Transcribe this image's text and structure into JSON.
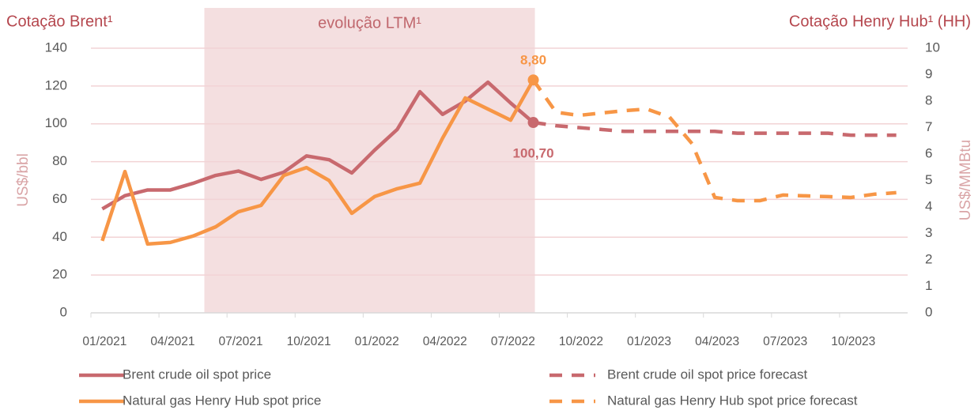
{
  "chart_data": {
    "type": "line",
    "title_left": "Cotação Brent¹",
    "title_right": "Cotação Henry Hub¹ (HH)",
    "ylabel": "US$/bbl",
    "y2label": "US$/MMBtu",
    "shade_label": "evolução LTM¹",
    "categories": [
      "01/2021",
      null,
      null,
      "04/2021",
      null,
      null,
      "07/2021",
      null,
      null,
      "10/2021",
      null,
      null,
      "01/2022",
      null,
      null,
      "04/2022",
      null,
      null,
      "07/2022",
      null,
      null,
      "10/2022",
      null,
      null,
      "01/2023",
      null,
      null,
      "04/2023",
      null,
      null,
      "07/2023",
      null,
      null,
      "10/2023",
      null,
      null
    ],
    "ylim": [
      0,
      140
    ],
    "yticks": [
      0,
      20,
      40,
      60,
      80,
      100,
      120,
      140
    ],
    "y2lim": [
      0,
      10
    ],
    "y2ticks": [
      0,
      1,
      2,
      3,
      4,
      5,
      6,
      7,
      8,
      9,
      10
    ],
    "grid": true,
    "series": [
      {
        "name": "Brent crude oil spot price",
        "color": "#c8696e",
        "dash": false,
        "values": [
          55,
          62,
          65,
          65,
          68.5,
          72.7,
          75,
          70.6,
          74.4,
          83,
          81,
          74,
          86,
          97,
          117,
          105,
          112,
          122,
          111,
          100.7,
          null,
          null,
          null,
          null,
          null,
          null,
          null,
          null,
          null,
          null,
          null,
          null,
          null,
          null,
          null,
          null
        ],
        "value_labels": [
          null,
          null,
          null,
          null,
          null,
          null,
          null,
          null,
          null,
          null,
          null,
          null,
          null,
          null,
          null,
          null,
          null,
          null,
          null,
          "100,70",
          null,
          null,
          null,
          null,
          null,
          null,
          null,
          null,
          null,
          null,
          null,
          null,
          null,
          null,
          null,
          null
        ]
      },
      {
        "name": "Natural gas Henry Hub spot price",
        "color": "#f79646",
        "dash": false,
        "axis": "y2",
        "values": [
          2.72,
          5.34,
          2.6,
          2.66,
          2.9,
          3.25,
          3.82,
          4.06,
          5.19,
          5.49,
          5.0,
          3.76,
          4.39,
          4.69,
          4.9,
          6.6,
          8.12,
          7.7,
          7.28,
          8.8,
          null,
          null,
          null,
          null,
          null,
          null,
          null,
          null,
          null,
          null,
          null,
          null,
          null,
          null,
          null,
          null
        ],
        "value_labels": [
          null,
          null,
          null,
          null,
          null,
          null,
          null,
          null,
          null,
          null,
          null,
          null,
          null,
          null,
          null,
          null,
          null,
          null,
          null,
          "8,80",
          null,
          null,
          null,
          null,
          null,
          null,
          null,
          null,
          null,
          null,
          null,
          null,
          null,
          null,
          null,
          null
        ]
      },
      {
        "name": "Brent crude oil spot price forecast",
        "color": "#c8696e",
        "dash": true,
        "values": [
          null,
          null,
          null,
          null,
          null,
          null,
          null,
          null,
          null,
          null,
          null,
          null,
          null,
          null,
          null,
          null,
          null,
          null,
          null,
          100.7,
          99,
          98,
          97,
          96,
          96,
          96,
          96,
          96,
          95,
          95,
          95,
          95,
          95,
          94,
          94,
          94
        ]
      },
      {
        "name": "Natural gas Henry Hub spot price forecast",
        "color": "#f79646",
        "dash": true,
        "axis": "y2",
        "values": [
          null,
          null,
          null,
          null,
          null,
          null,
          null,
          null,
          null,
          null,
          null,
          null,
          null,
          null,
          null,
          null,
          null,
          null,
          null,
          8.8,
          7.58,
          7.46,
          7.55,
          7.64,
          7.7,
          7.4,
          6.39,
          4.36,
          4.24,
          4.24,
          4.45,
          4.42,
          4.39,
          4.36,
          4.48,
          4.54
        ]
      }
    ]
  }
}
